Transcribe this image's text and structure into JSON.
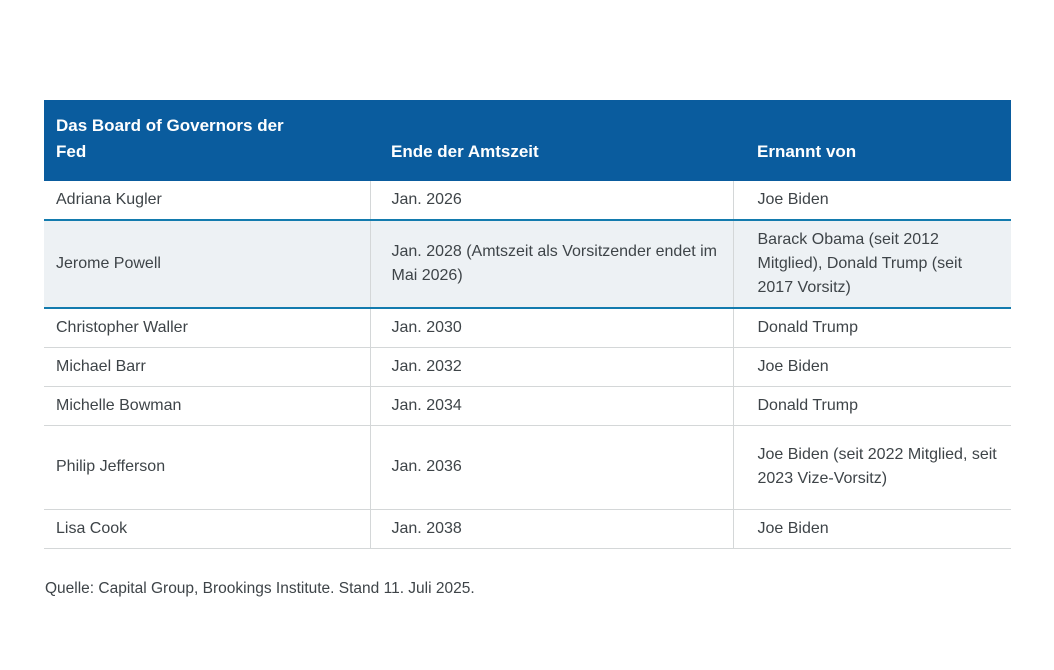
{
  "chart_data": {
    "type": "table",
    "title": "Das Board of Governors der Fed",
    "columns": [
      "Das Board of Governors der Fed",
      "Ende der Amtszeit",
      "Ernannt von"
    ],
    "rows": [
      [
        "Adriana Kugler",
        "Jan. 2026",
        "Joe Biden"
      ],
      [
        "Jerome Powell",
        "Jan. 2028 (Amtszeit als Vorsitzender endet im Mai 2026)",
        "Barack Obama (seit 2012 Mitglied), Donald Trump (seit 2017 Vorsitz)"
      ],
      [
        "Christopher Waller",
        "Jan. 2030",
        "Donald Trump"
      ],
      [
        "Michael Barr",
        "Jan. 2032",
        "Joe Biden"
      ],
      [
        "Michelle Bowman",
        "Jan. 2034",
        "Donald Trump"
      ],
      [
        "Philip Jefferson",
        "Jan. 2036",
        "Joe Biden (seit 2022 Mitglied, seit 2023 Vize-Vorsitz)"
      ],
      [
        "Lisa Cook",
        "Jan. 2038",
        "Joe Biden"
      ]
    ],
    "highlighted_row": "Jerome Powell",
    "layout_hints": {
      "grid": "horizontal row separators",
      "header_position": "top"
    }
  },
  "table": {
    "header": {
      "col1_lines": [
        "Das Board of Governors der",
        "Fed"
      ],
      "col2": "Ende der Amtszeit",
      "col3": "Ernannt von"
    },
    "rows": [
      {
        "name": "Adriana Kugler",
        "term_end": "Jan. 2026",
        "appointed_by": "Joe Biden"
      },
      {
        "name": "Jerome Powell",
        "term_end": "Jan. 2028 (Amtszeit als Vorsitzender endet im Mai 2026)",
        "appointed_by": "Barack Obama (seit 2012 Mitglied), Donald Trump (seit 2017 Vorsitz)"
      },
      {
        "name": "Christopher Waller",
        "term_end": "Jan. 2030",
        "appointed_by": "Donald Trump"
      },
      {
        "name": "Michael Barr",
        "term_end": "Jan. 2032",
        "appointed_by": "Joe Biden"
      },
      {
        "name": "Michelle Bowman",
        "term_end": "Jan. 2034",
        "appointed_by": "Donald Trump"
      },
      {
        "name": "Philip Jefferson",
        "term_end": "Jan. 2036",
        "appointed_by": "Joe Biden (seit 2022 Mitglied, seit 2023 Vize-Vorsitz)"
      },
      {
        "name": "Lisa Cook",
        "term_end": "Jan. 2038",
        "appointed_by": "Joe Biden"
      }
    ]
  },
  "footer": {
    "source": "Quelle: Capital Group, Brookings Institute. Stand 11. Juli 2025."
  },
  "colors": {
    "header_bg": "#0a5c9e",
    "header_text": "#ffffff",
    "highlight_bg": "#edf1f4",
    "highlight_border": "#137bae",
    "row_divider": "#d4d7d8",
    "body_text": "#3e4448"
  }
}
